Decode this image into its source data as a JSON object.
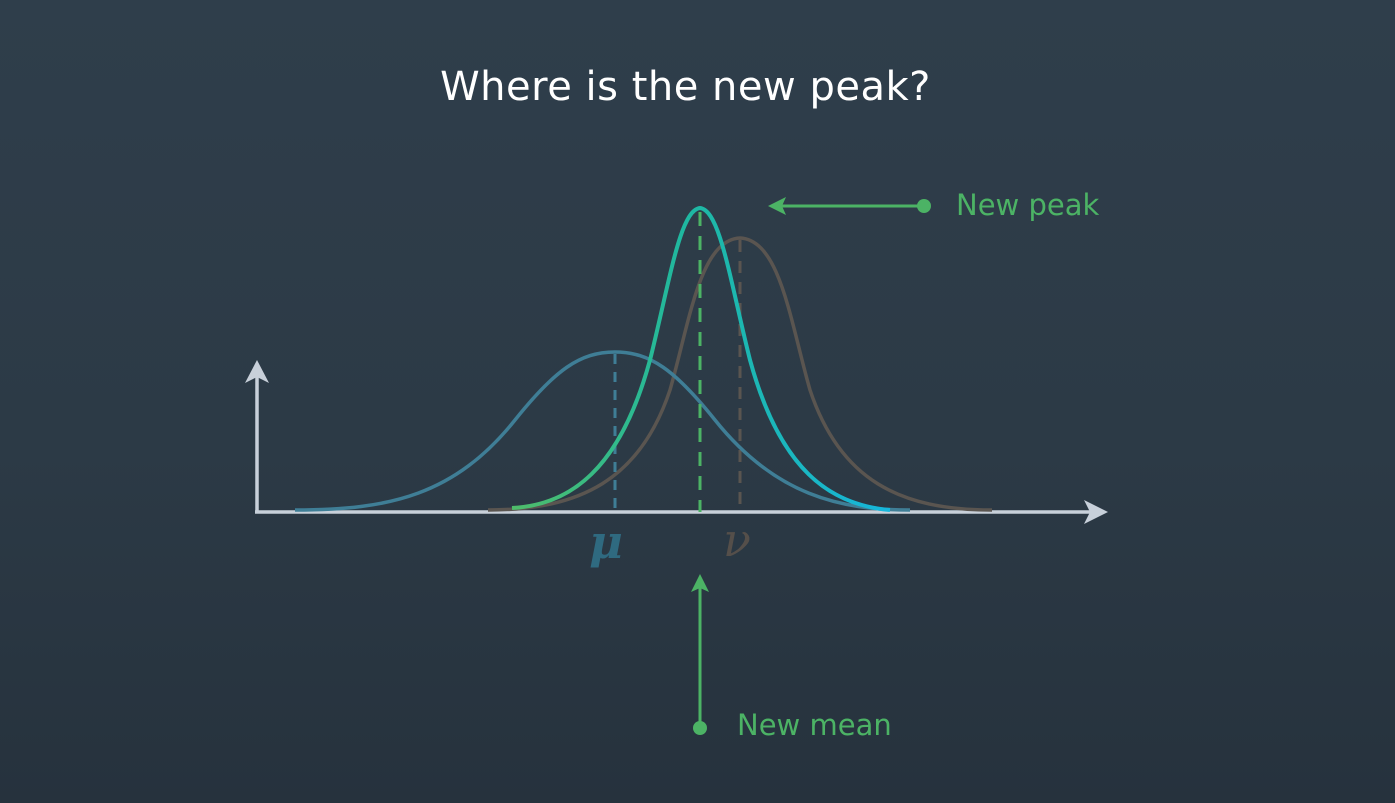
{
  "title": "Where is the new peak?",
  "labels": {
    "new_peak": "New peak",
    "new_mean": "New mean",
    "mu": "μ",
    "nu": "ν"
  },
  "colors": {
    "background": "#2c3a46",
    "axis": "#c8d0da",
    "prior_curve": "#3f7e96",
    "measurement_curve": "#5a5550",
    "posterior_start": "#4fbd6a",
    "posterior_end": "#16b6dc",
    "annotation": "#4cb365",
    "title": "#ffffff"
  },
  "diagram": {
    "curves": [
      {
        "name": "prior",
        "mean_label": "μ",
        "relative_mean": 0.0,
        "relative_width": 1.0,
        "relative_peak": 0.54
      },
      {
        "name": "measurement",
        "mean_label": "ν",
        "relative_mean": 1.0,
        "relative_width": 0.55,
        "relative_peak": 0.9
      },
      {
        "name": "posterior",
        "mean_label": "New mean",
        "relative_mean": 0.68,
        "relative_width": 0.42,
        "relative_peak": 1.0
      }
    ]
  }
}
